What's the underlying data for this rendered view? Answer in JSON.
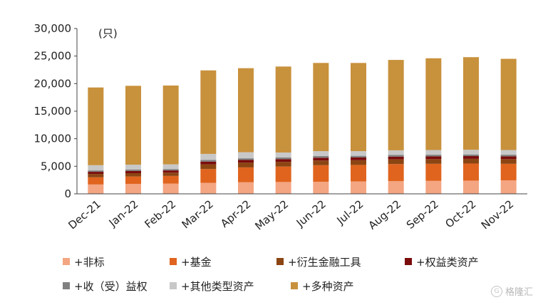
{
  "chart_data": {
    "type": "bar",
    "stacked": true,
    "unit_label": "(只)",
    "categories": [
      "Dec-21",
      "Jan-22",
      "Feb-22",
      "Mar-22",
      "Apr-22",
      "May-22",
      "Jun-22",
      "Jul-22",
      "Aug-22",
      "Sep-22",
      "Oct-22",
      "Nov-22"
    ],
    "ylim": [
      0,
      30000
    ],
    "yticks": [
      0,
      5000,
      10000,
      15000,
      20000,
      25000,
      30000
    ],
    "ytick_labels": [
      "0",
      "5,000",
      "10,000",
      "15,000",
      "20,000",
      "25,000",
      "30,000"
    ],
    "grid": false,
    "legend_position": "bottom",
    "series": [
      {
        "name": "+非标",
        "color": "#F4A582",
        "values": [
          1700,
          1800,
          1850,
          2000,
          2100,
          2150,
          2200,
          2250,
          2300,
          2350,
          2400,
          2450
        ]
      },
      {
        "name": "+基金",
        "color": "#E0641E",
        "values": [
          1300,
          1350,
          1400,
          2500,
          2700,
          2800,
          3000,
          3000,
          3100,
          3100,
          3100,
          3000
        ]
      },
      {
        "name": "+衍生金融工具",
        "color": "#8B4513",
        "values": [
          600,
          600,
          600,
          850,
          850,
          850,
          850,
          850,
          850,
          850,
          850,
          850
        ]
      },
      {
        "name": "+权益类资产",
        "color": "#7A0C0C",
        "values": [
          400,
          400,
          400,
          500,
          500,
          500,
          500,
          500,
          500,
          500,
          500,
          500
        ]
      },
      {
        "name": "+收（受）益权",
        "color": "#808080",
        "values": [
          250,
          250,
          250,
          300,
          300,
          300,
          300,
          300,
          300,
          300,
          300,
          300
        ]
      },
      {
        "name": "+其他类型资产",
        "color": "#C8C8C8",
        "values": [
          950,
          900,
          850,
          1100,
          1100,
          900,
          900,
          850,
          850,
          850,
          850,
          850
        ]
      },
      {
        "name": "+多种资产",
        "color": "#C8913C",
        "values": [
          14100,
          14300,
          14300,
          15150,
          15250,
          15600,
          16000,
          16000,
          16400,
          16650,
          16800,
          16550
        ]
      }
    ]
  },
  "legend_rows": [
    [
      0,
      1,
      2,
      3
    ],
    [
      4,
      5,
      6
    ]
  ],
  "watermark": {
    "text": "格隆汇"
  }
}
